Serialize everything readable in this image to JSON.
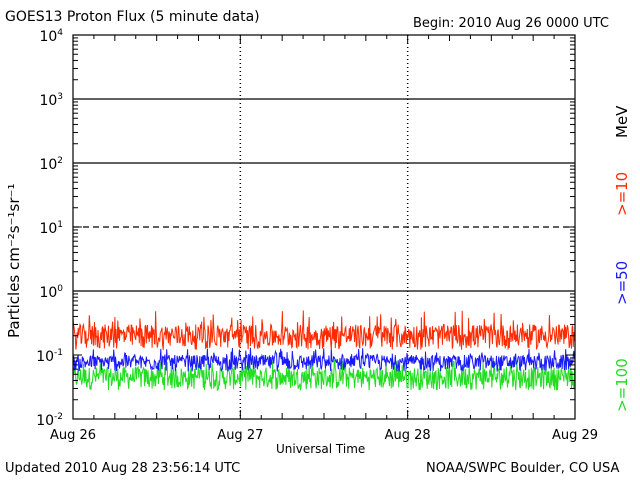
{
  "header": {
    "title": "GOES13 Proton Flux (5 minute data)",
    "begin": "Begin: 2010 Aug 26 0000 UTC"
  },
  "footer": {
    "updated": "Updated 2010 Aug 28 23:56:14 UTC",
    "credit": "NOAA/SWPC Boulder, CO USA"
  },
  "chart_data": {
    "type": "line",
    "title": "GOES13 Proton Flux (5 minute data)",
    "xlabel": "Universal Time",
    "ylabel": "Particles cm⁻²s⁻¹sr⁻¹",
    "y_scale": "log",
    "ylim": [
      0.01,
      10000
    ],
    "xlim": [
      0,
      3
    ],
    "x_unit": "days since 2010 Aug 26 0000 UTC",
    "x_ticks": [
      {
        "value": 0,
        "label": "Aug 26"
      },
      {
        "value": 1,
        "label": "Aug 27"
      },
      {
        "value": 2,
        "label": "Aug 28"
      },
      {
        "value": 3,
        "label": "Aug 29"
      }
    ],
    "y_ticks": [
      {
        "value": 0.01,
        "base": "10",
        "exp": "-2"
      },
      {
        "value": 0.1,
        "base": "10",
        "exp": "-1"
      },
      {
        "value": 1,
        "base": "10",
        "exp": "0"
      },
      {
        "value": 10,
        "base": "10",
        "exp": "1"
      },
      {
        "value": 100,
        "base": "10",
        "exp": "2"
      },
      {
        "value": 1000,
        "base": "10",
        "exp": "3"
      },
      {
        "value": 10000,
        "base": "10",
        "exp": "4"
      }
    ],
    "thresholds": [
      {
        "value": 10,
        "style": "dashed"
      },
      {
        "value": 1,
        "style": "solid"
      },
      {
        "value": 100,
        "style": "solid"
      },
      {
        "value": 1000,
        "style": "solid"
      }
    ],
    "legend_unit": "MeV",
    "series": [
      {
        "name": ">=10",
        "color": "#ff2a00",
        "typical_low": 0.12,
        "typical_high": 0.3,
        "peak": 0.5
      },
      {
        "name": ">=50",
        "color": "#1a1aff",
        "typical_low": 0.055,
        "typical_high": 0.1,
        "peak": 0.13
      },
      {
        "name": ">=100",
        "color": "#22dd22",
        "typical_low": 0.028,
        "typical_high": 0.065,
        "peak": 0.085
      }
    ]
  },
  "colors": {
    "background": "#ffffff",
    "axes": "#000000"
  }
}
